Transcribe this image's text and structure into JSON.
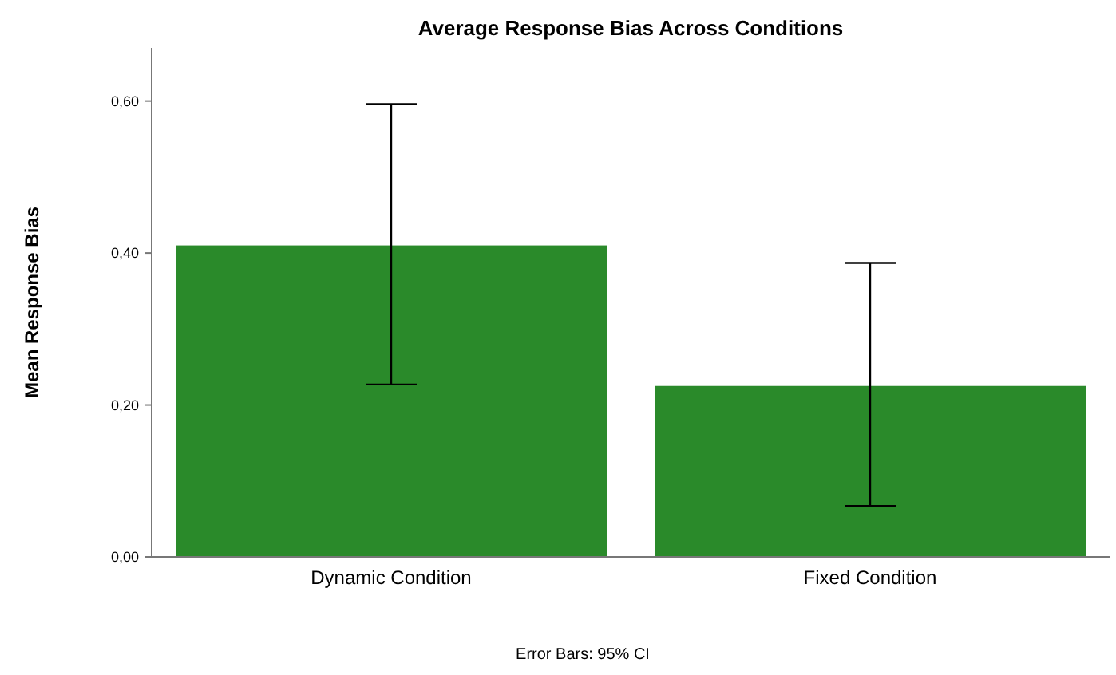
{
  "chart_data": {
    "type": "bar",
    "title": "Average Response Bias Across Conditions",
    "ylabel": "Mean Response Bias",
    "categories": [
      "Dynamic Condition",
      "Fixed Condition"
    ],
    "values": [
      0.41,
      0.225
    ],
    "errors": [
      [
        0.227,
        0.596
      ],
      [
        0.067,
        0.387
      ]
    ],
    "color": "#2a8a2a",
    "ylim": [
      0,
      0.67
    ],
    "yticks": [
      {
        "value": 0,
        "label": "0,00"
      },
      {
        "value": 0.2,
        "label": "0,20"
      },
      {
        "value": 0.4,
        "label": "0,40"
      },
      {
        "value": 0.6,
        "label": "0,60"
      }
    ],
    "grid": false,
    "annotations": [
      "Error Bars: 95% CI"
    ]
  }
}
